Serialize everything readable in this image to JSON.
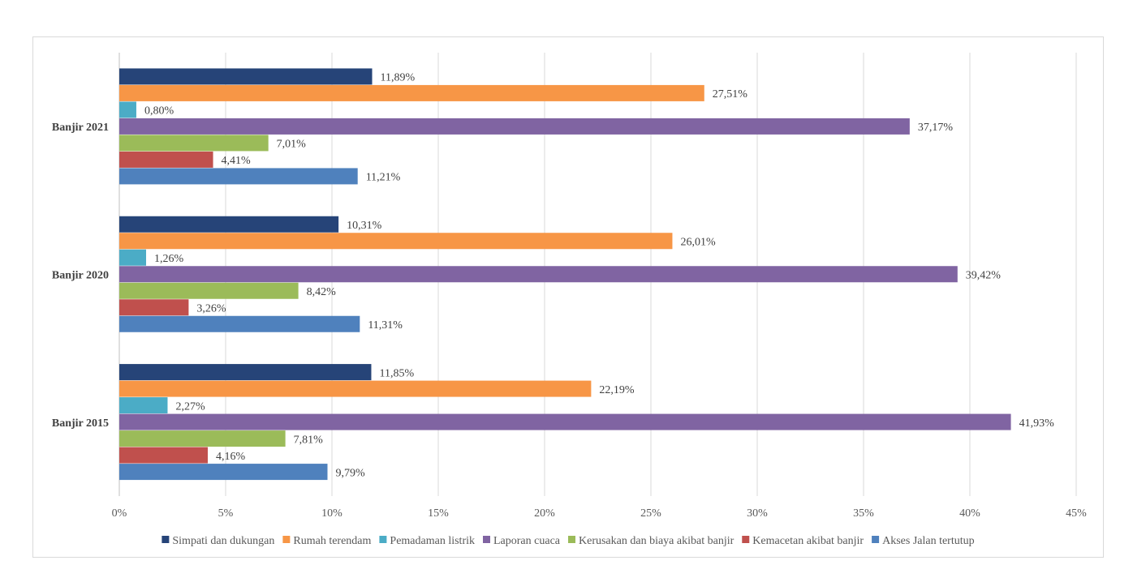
{
  "chart_data": {
    "type": "bar",
    "orientation": "horizontal",
    "title": "",
    "xlabel": "",
    "ylabel": "",
    "xlim": [
      0,
      45
    ],
    "x_ticks": [
      "0%",
      "5%",
      "10%",
      "15%",
      "20%",
      "25%",
      "30%",
      "35%",
      "40%",
      "45%"
    ],
    "grid": "vertical",
    "legend_position": "bottom",
    "categories": [
      "Banjir 2021",
      "Banjir 2020",
      "Banjir 2015"
    ],
    "series": [
      {
        "name": "Simpati dan dukungan",
        "color": "#264478",
        "values": [
          11.89,
          10.31,
          11.85
        ],
        "labels": [
          "11,89%",
          "10,31%",
          "11,85%"
        ]
      },
      {
        "name": "Rumah terendam",
        "color": "#f79646",
        "values": [
          27.51,
          26.01,
          22.19
        ],
        "labels": [
          "27,51%",
          "26,01%",
          "22,19%"
        ]
      },
      {
        "name": "Pemadaman listrik",
        "color": "#4bacc6",
        "values": [
          0.8,
          1.26,
          2.27
        ],
        "labels": [
          "0,80%",
          "1,26%",
          "2,27%"
        ]
      },
      {
        "name": "Laporan cuaca",
        "color": "#8064a2",
        "values": [
          37.17,
          39.42,
          41.93
        ],
        "labels": [
          "37,17%",
          "39,42%",
          "41,93%"
        ]
      },
      {
        "name": "Kerusakan dan biaya akibat banjir",
        "color": "#9bbb59",
        "values": [
          7.01,
          8.42,
          7.81
        ],
        "labels": [
          "7,01%",
          "8,42%",
          "7,81%"
        ]
      },
      {
        "name": "Kemacetan akibat banjir",
        "color": "#c0504d",
        "values": [
          4.41,
          3.26,
          4.16
        ],
        "labels": [
          "4,41%",
          "3,26%",
          "4,16%"
        ]
      },
      {
        "name": "Akses Jalan tertutup",
        "color": "#4f81bd",
        "values": [
          11.21,
          11.31,
          9.79
        ],
        "labels": [
          "11,21%",
          "11,31%",
          "9,79%"
        ]
      }
    ]
  }
}
